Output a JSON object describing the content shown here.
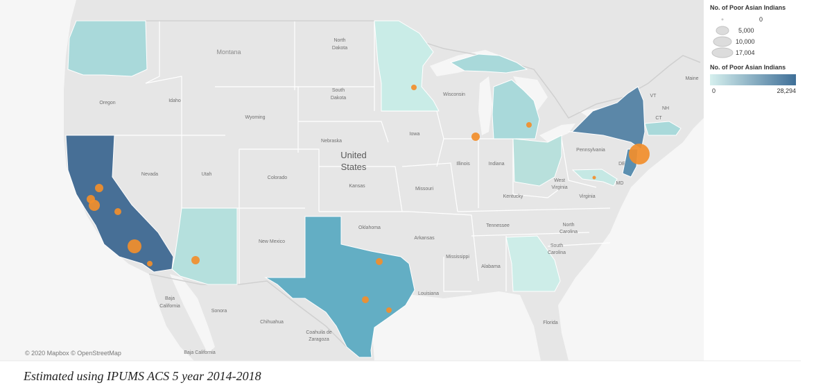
{
  "legend": {
    "size_title": "No. of Poor Asian Indians",
    "size_labels": [
      "0",
      "5,000",
      "10,000",
      "17,004"
    ],
    "color_title": "No. of Poor Asian Indians",
    "color_min": "0",
    "color_max": "28,294",
    "color_low": "#d6f0ee",
    "color_high": "#3f6f98"
  },
  "labels": {
    "montana": "Montana",
    "north_dakota_1": "North",
    "north_dakota_2": "Dakota",
    "south_dakota_1": "South",
    "south_dakota_2": "Dakota",
    "oregon": "Oregon",
    "idaho": "Idaho",
    "wyoming": "Wyoming",
    "nebraska": "Nebraska",
    "united_1": "United",
    "united_2": "States",
    "iowa": "Iowa",
    "wisconsin": "Wisconsin",
    "maine": "Maine",
    "nevada": "Nevada",
    "utah": "Utah",
    "colorado": "Colorado",
    "kansas": "Kansas",
    "missouri": "Missouri",
    "illinois": "Illinois",
    "indiana": "Indiana",
    "pennsylvania": "Pennsylvania",
    "west_virginia_1": "West",
    "west_virginia_2": "Virginia",
    "virginia": "Virginia",
    "kentucky": "Kentucky",
    "tennessee": "Tennessee",
    "oklahoma": "Oklahoma",
    "arkansas": "Arkansas",
    "new_mexico": "New Mexico",
    "mississippi": "Mississippi",
    "alabama": "Alabama",
    "louisiana": "Louisiana",
    "north_carolina_1": "North",
    "north_carolina_2": "Carolina",
    "south_carolina_1": "South",
    "south_carolina_2": "Carolina",
    "florida": "Florida",
    "vt": "VT",
    "nh": "NH",
    "ct": "CT",
    "de": "DE",
    "md": "MD",
    "baja_california_sur_1": "Baja",
    "baja_california_sur_2": "California",
    "baja_california": "Baja California",
    "sonora": "Sonora",
    "chihuahua": "Chihuahua",
    "coahuila_1": "Coahuila de",
    "coahuila_2": "Zaragoza"
  },
  "attribution": "© 2020 Mapbox © OpenStreetMap",
  "footnote": "Estimated using IPUMS ACS 5 year 2014-2018",
  "colors": {
    "land": "#e6e6e6",
    "ocean": "#f7f7f7",
    "border": "#ffffff",
    "bubble": "#f28e2b",
    "california": "#476f96",
    "new_york": "#5b87a8",
    "texas": "#63aec4",
    "new_jersey": "#5b8fb0",
    "washington": "#a9d9da",
    "minnesota": "#c9ece7",
    "michigan": "#a9d9da",
    "arizona": "#b5e0dd",
    "ohio": "#b8e0dc",
    "georgia": "#cdede8",
    "massachusetts": "#a9d9da",
    "maryland": "#c5e8e4"
  }
}
